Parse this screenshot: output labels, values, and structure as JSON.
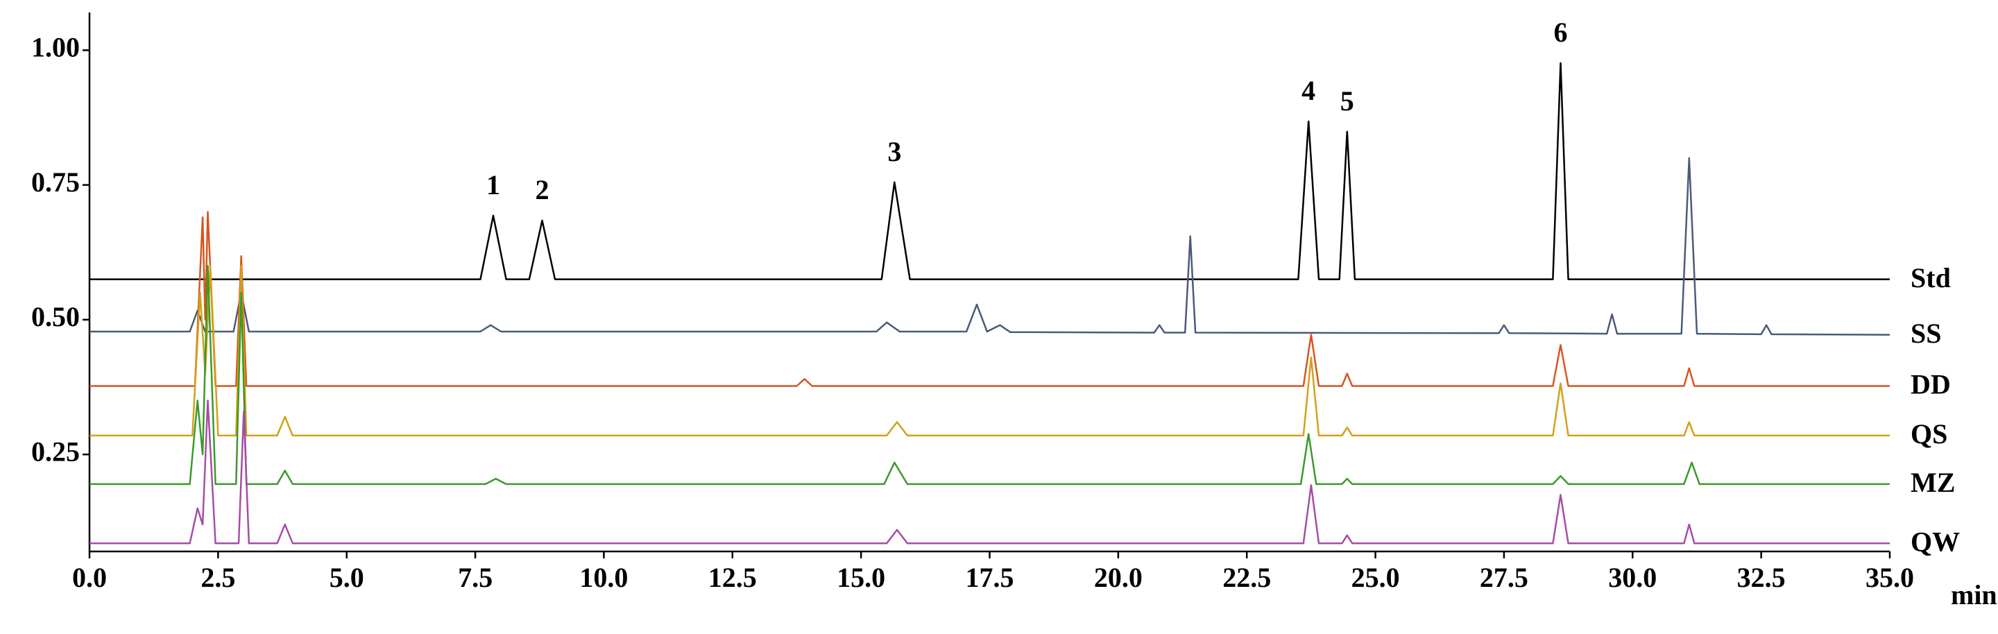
{
  "chart_data": {
    "type": "line",
    "x_label": "min",
    "xlim": [
      0,
      35
    ],
    "xticks": [
      {
        "value": 0,
        "label": "0.0"
      },
      2.5,
      {
        "value": 5,
        "label": "5.0"
      },
      7.5,
      {
        "value": 10,
        "label": "10.0"
      },
      12.5,
      {
        "value": 15,
        "label": "15.0"
      },
      17.5,
      {
        "value": 20,
        "label": "20.0"
      },
      22.5,
      {
        "value": 25,
        "label": "25.0"
      },
      27.5,
      {
        "value": 30,
        "label": "30.0"
      },
      32.5,
      {
        "value": 35,
        "label": "35.0"
      }
    ],
    "ylim": [
      0.07,
      1.07
    ],
    "yticks": [
      0.25,
      {
        "value": 0.5,
        "label": "0.50"
      },
      0.75,
      {
        "value": 1,
        "label": "1.00"
      }
    ],
    "annotations": [
      {
        "text": "1",
        "x": 7.85
      },
      {
        "text": "2",
        "x": 8.8
      },
      {
        "text": "3",
        "x": 15.65
      },
      {
        "text": "4",
        "x": 23.7
      },
      {
        "text": "5",
        "x": 24.45
      },
      {
        "text": "6",
        "x": 28.6
      }
    ],
    "series": [
      {
        "name": "Std",
        "color": "#000000",
        "x": [
          0,
          7.6,
          7.85,
          8.1,
          8.55,
          8.8,
          9.05,
          15.4,
          15.65,
          15.95,
          23.5,
          23.7,
          23.9,
          24.3,
          24.45,
          24.6,
          28.45,
          28.6,
          28.75,
          35
        ],
        "values": [
          0.575,
          0.575,
          0.693,
          0.575,
          0.575,
          0.684,
          0.575,
          0.575,
          0.755,
          0.575,
          0.575,
          0.868,
          0.575,
          0.575,
          0.849,
          0.575,
          0.575,
          0.976,
          0.575,
          0.575
        ]
      },
      {
        "name": "SS",
        "color": "#4a5a7a",
        "x": [
          0,
          1.95,
          2.1,
          2.25,
          2.8,
          2.95,
          3.1,
          7.6,
          7.8,
          8.0,
          15.3,
          15.5,
          15.75,
          17.05,
          17.25,
          17.45,
          17.7,
          17.9,
          20.7,
          20.8,
          20.9,
          21.3,
          21.4,
          21.5,
          27.4,
          27.5,
          27.6,
          29.5,
          29.6,
          29.7,
          30.95,
          31.1,
          31.25,
          32.5,
          32.6,
          32.7,
          35
        ],
        "values": [
          0.478,
          0.478,
          0.517,
          0.478,
          0.478,
          0.55,
          0.478,
          0.478,
          0.49,
          0.478,
          0.478,
          0.495,
          0.478,
          0.478,
          0.528,
          0.478,
          0.49,
          0.477,
          0.476,
          0.49,
          0.476,
          0.476,
          0.655,
          0.476,
          0.475,
          0.49,
          0.475,
          0.474,
          0.51,
          0.474,
          0.474,
          0.8,
          0.474,
          0.473,
          0.49,
          0.473,
          0.472
        ]
      },
      {
        "name": "DD",
        "color": "#d9541e",
        "x": [
          0,
          2.05,
          2.2,
          2.25,
          2.3,
          2.45,
          2.85,
          2.95,
          3.05,
          13.75,
          13.9,
          14.05,
          23.6,
          23.75,
          23.9,
          24.35,
          24.45,
          24.55,
          28.45,
          28.6,
          28.75,
          31.0,
          31.1,
          31.2,
          35
        ],
        "values": [
          0.377,
          0.377,
          0.69,
          0.5,
          0.7,
          0.377,
          0.377,
          0.618,
          0.377,
          0.377,
          0.39,
          0.377,
          0.377,
          0.472,
          0.377,
          0.377,
          0.4,
          0.377,
          0.377,
          0.453,
          0.377,
          0.377,
          0.41,
          0.377,
          0.377
        ]
      },
      {
        "name": "QS",
        "color": "#d4a017",
        "x": [
          0,
          2.0,
          2.15,
          2.25,
          2.35,
          2.5,
          2.85,
          2.95,
          3.05,
          3.65,
          3.8,
          3.95,
          15.5,
          15.7,
          15.9,
          23.6,
          23.75,
          23.9,
          24.35,
          24.45,
          24.55,
          28.45,
          28.6,
          28.75,
          31.0,
          31.1,
          31.2,
          35
        ],
        "values": [
          0.285,
          0.285,
          0.55,
          0.4,
          0.6,
          0.285,
          0.285,
          0.6,
          0.285,
          0.285,
          0.32,
          0.285,
          0.285,
          0.31,
          0.285,
          0.285,
          0.43,
          0.285,
          0.285,
          0.3,
          0.285,
          0.285,
          0.382,
          0.285,
          0.285,
          0.31,
          0.285,
          0.285
        ]
      },
      {
        "name": "MZ",
        "color": "#3a9a2a",
        "x": [
          0,
          1.95,
          2.1,
          2.2,
          2.3,
          2.45,
          2.85,
          2.95,
          3.05,
          3.65,
          3.8,
          3.95,
          7.7,
          7.9,
          8.1,
          15.45,
          15.65,
          15.9,
          23.55,
          23.7,
          23.85,
          24.35,
          24.45,
          24.55,
          28.45,
          28.6,
          28.75,
          31.0,
          31.15,
          31.3,
          35
        ],
        "values": [
          0.195,
          0.195,
          0.35,
          0.25,
          0.6,
          0.195,
          0.195,
          0.55,
          0.195,
          0.195,
          0.22,
          0.195,
          0.195,
          0.205,
          0.195,
          0.195,
          0.235,
          0.195,
          0.195,
          0.288,
          0.195,
          0.195,
          0.205,
          0.195,
          0.195,
          0.21,
          0.195,
          0.195,
          0.235,
          0.195,
          0.195
        ]
      },
      {
        "name": "QW",
        "color": "#a64ca6",
        "x": [
          0,
          1.95,
          2.1,
          2.2,
          2.3,
          2.45,
          2.9,
          3.0,
          3.1,
          3.65,
          3.8,
          3.95,
          15.5,
          15.7,
          15.9,
          23.6,
          23.75,
          23.9,
          24.35,
          24.45,
          24.55,
          28.45,
          28.6,
          28.75,
          31.0,
          31.1,
          31.2,
          35
        ],
        "values": [
          0.085,
          0.085,
          0.15,
          0.12,
          0.35,
          0.085,
          0.085,
          0.33,
          0.085,
          0.085,
          0.12,
          0.085,
          0.085,
          0.11,
          0.085,
          0.085,
          0.193,
          0.085,
          0.085,
          0.1,
          0.085,
          0.085,
          0.175,
          0.085,
          0.085,
          0.12,
          0.085,
          0.085
        ]
      }
    ]
  }
}
